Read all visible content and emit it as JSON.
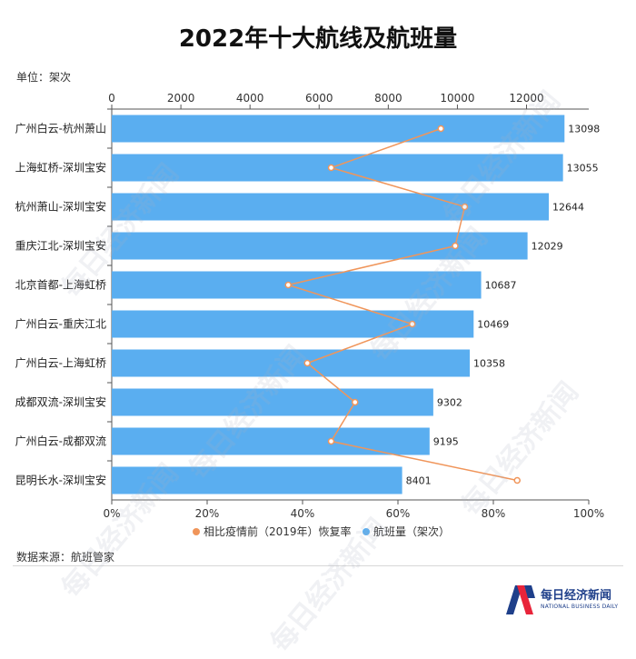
{
  "title": "2022年十大航线及航班量",
  "unit_label": "单位：架次",
  "source_label": "数据来源：航班管家",
  "watermark": "每日经济新闻",
  "brand": {
    "name_cn": "每日经济新闻",
    "name_en": "NATIONAL BUSINESS DAILY"
  },
  "colors": {
    "bar": "#5aaef0",
    "line": "#f0955a",
    "accent": "#1e3f8a",
    "brand_red": "#e8243a"
  },
  "chart_data": {
    "type": "bar",
    "orientation": "horizontal",
    "categories": [
      "广州白云-杭州萧山",
      "上海虹桥-深圳宝安",
      "杭州萧山-深圳宝安",
      "重庆江北-深圳宝安",
      "北京首都-上海虹桥",
      "广州白云-重庆江北",
      "广州白云-上海虹桥",
      "成都双流-深圳宝安",
      "广州白云-成都双流",
      "昆明长水-深圳宝安"
    ],
    "series": [
      {
        "name": "航班量（架次）",
        "type": "bar",
        "axis": "top",
        "values": [
          13098,
          13055,
          12644,
          12029,
          10687,
          10469,
          10358,
          9302,
          9195,
          8401
        ]
      },
      {
        "name": "相比疫情前（2019年）恢复率",
        "type": "line",
        "axis": "bottom",
        "values": [
          69,
          46,
          74,
          72,
          37,
          63,
          41,
          51,
          46,
          85
        ]
      }
    ],
    "top_axis": {
      "range": [
        0,
        13800
      ],
      "ticks": [
        "0",
        "2000",
        "4000",
        "6000",
        "8000",
        "10000",
        "12000"
      ]
    },
    "bottom_axis": {
      "range": [
        0,
        100
      ],
      "ticks": [
        "0%",
        "20%",
        "40%",
        "60%",
        "80%",
        "100%"
      ]
    },
    "legend_position": "bottom",
    "grid": false
  }
}
